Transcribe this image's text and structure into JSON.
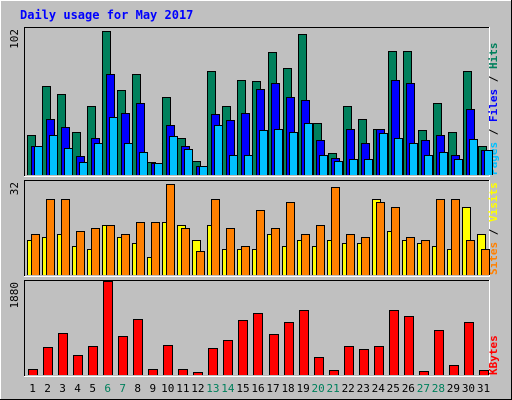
{
  "chart_data": [
    {
      "type": "bar",
      "panel": "pages-files-hits",
      "title": "Daily usage for May 2017",
      "ylabel_parts": [
        {
          "text": "Pages",
          "color": "#00c0ff"
        },
        {
          "text": " / ",
          "color": "#000000"
        },
        {
          "text": "Files",
          "color": "#0000ff"
        },
        {
          "text": " / ",
          "color": "#000000"
        },
        {
          "text": "Hits",
          "color": "#00805c"
        }
      ],
      "ymax_label": "102",
      "ylim": [
        0,
        102
      ],
      "categories": [
        "1",
        "2",
        "3",
        "4",
        "5",
        "6",
        "7",
        "8",
        "9",
        "10",
        "11",
        "12",
        "13",
        "14",
        "15",
        "16",
        "17",
        "18",
        "19",
        "20",
        "21",
        "22",
        "23",
        "24",
        "25",
        "26",
        "27",
        "28",
        "29",
        "30",
        "31"
      ],
      "weekend_days": [
        "6",
        "7",
        "13",
        "14",
        "20",
        "21",
        "27",
        "28"
      ],
      "series": [
        {
          "name": "Hits",
          "color": "#00805c",
          "values": [
            28,
            62,
            56,
            30,
            48,
            100,
            59,
            70,
            9,
            54,
            26,
            10,
            72,
            48,
            66,
            65,
            85,
            74,
            98,
            36,
            15,
            48,
            39,
            32,
            86,
            86,
            31,
            50,
            30,
            72,
            20
          ]
        },
        {
          "name": "Files",
          "color": "#0000ff",
          "values": [
            20,
            39,
            33,
            13,
            26,
            70,
            43,
            50,
            8,
            35,
            20,
            6,
            42,
            38,
            43,
            60,
            64,
            54,
            52,
            24,
            12,
            32,
            22,
            32,
            66,
            64,
            24,
            28,
            14,
            46,
            17
          ]
        },
        {
          "name": "Pages",
          "color": "#00c0ff",
          "values": [
            20,
            28,
            19,
            9,
            22,
            40,
            22,
            16,
            8,
            27,
            18,
            6,
            35,
            14,
            14,
            31,
            32,
            30,
            36,
            14,
            10,
            11,
            11,
            29,
            26,
            22,
            14,
            16,
            11,
            25,
            17
          ]
        }
      ],
      "legend_position": "right"
    },
    {
      "type": "bar",
      "panel": "sites-visits",
      "ylabel_parts": [
        {
          "text": "Sites",
          "color": "#ff8000"
        },
        {
          "text": " / ",
          "color": "#000000"
        },
        {
          "text": "Visits",
          "color": "#ffff00"
        }
      ],
      "ymax_label": "32",
      "ylim": [
        0,
        32
      ],
      "categories": [
        "1",
        "2",
        "3",
        "4",
        "5",
        "6",
        "7",
        "8",
        "9",
        "10",
        "11",
        "12",
        "13",
        "14",
        "15",
        "16",
        "17",
        "18",
        "19",
        "20",
        "21",
        "22",
        "23",
        "24",
        "25",
        "26",
        "27",
        "28",
        "29",
        "30",
        "31"
      ],
      "weekend_days": [
        "6",
        "7",
        "13",
        "14",
        "20",
        "21",
        "27",
        "28"
      ],
      "series": [
        {
          "name": "Visits",
          "color": "#ffff00",
          "values": [
            12,
            13,
            14,
            10,
            9,
            17,
            13,
            11,
            6,
            18,
            17,
            12,
            17,
            9,
            9,
            9,
            14,
            10,
            12,
            10,
            12,
            11,
            11,
            26,
            15,
            12,
            11,
            10,
            9,
            23,
            14
          ]
        },
        {
          "name": "Sites",
          "color": "#ff8000",
          "values": [
            14,
            26,
            26,
            15,
            16,
            17,
            14,
            18,
            18,
            31,
            16,
            8,
            26,
            16,
            10,
            22,
            16,
            25,
            14,
            17,
            30,
            14,
            13,
            25,
            23,
            13,
            12,
            26,
            26,
            12,
            9
          ]
        }
      ],
      "legend_position": "right"
    },
    {
      "type": "bar",
      "panel": "kbytes",
      "ylabel_parts": [
        {
          "text": "KBytes",
          "color": "#ff0000"
        }
      ],
      "ymax_label": "1880",
      "ylim": [
        0,
        1880
      ],
      "categories": [
        "1",
        "2",
        "3",
        "4",
        "5",
        "6",
        "7",
        "8",
        "9",
        "10",
        "11",
        "12",
        "13",
        "14",
        "15",
        "16",
        "17",
        "18",
        "19",
        "20",
        "21",
        "22",
        "23",
        "24",
        "25",
        "26",
        "27",
        "28",
        "29",
        "30",
        "31"
      ],
      "weekend_days": [
        "6",
        "7",
        "13",
        "14",
        "20",
        "21",
        "27",
        "28"
      ],
      "series": [
        {
          "name": "KBytes",
          "color": "#ff0000",
          "values": [
            120,
            560,
            830,
            390,
            580,
            1870,
            780,
            1120,
            120,
            600,
            120,
            60,
            530,
            700,
            1090,
            1230,
            820,
            1060,
            1290,
            360,
            100,
            570,
            520,
            570,
            1300,
            1180,
            80,
            890,
            200,
            1060,
            90
          ]
        }
      ],
      "legend_position": "right"
    }
  ]
}
